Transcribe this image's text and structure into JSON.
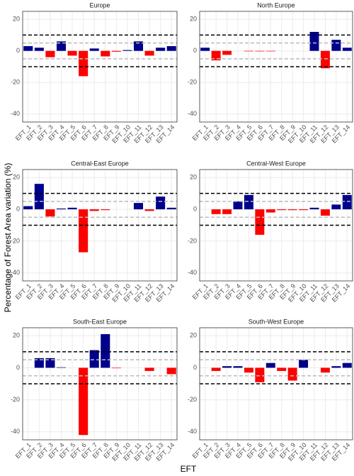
{
  "y_label": "Percentage of Forest Area variation (%)",
  "x_label": "EFT",
  "chart_data": [
    {
      "type": "bar",
      "title": "Europe",
      "categories": [
        "EFT_1",
        "EFT_2",
        "EFT_3",
        "EFT_4",
        "EFT_5",
        "EFT_6",
        "EFT_7",
        "EFT_8",
        "EFT_9",
        "EFT_10",
        "EFT_11",
        "EFT_12",
        "EFT_13",
        "EFT_14"
      ],
      "values": [
        3,
        2,
        -4,
        6,
        -3,
        -16,
        1.5,
        -3.5,
        -0.5,
        0.5,
        6,
        -3,
        2,
        3
      ],
      "pos_color": "#00008b",
      "neg_color": "#ff0000",
      "ylim": [
        -45,
        25
      ],
      "yticks": [
        -40,
        -20,
        0,
        20
      ],
      "grid": true,
      "hlines": [
        {
          "value": 10,
          "color": "#000000"
        },
        {
          "value": -10,
          "color": "#000000"
        },
        {
          "value": 5,
          "color": "#bbbbbb"
        },
        {
          "value": -5,
          "color": "#bbbbbb"
        }
      ]
    },
    {
      "type": "bar",
      "title": "North Europe",
      "categories": [
        "EFT_1",
        "EFT_2",
        "EFT_3",
        "EFT_4",
        "EFT_5",
        "EFT_6",
        "EFT_7",
        "EFT_8",
        "EFT_9",
        "EFT_10",
        "EFT_11",
        "EFT_12",
        "EFT_13",
        "EFT_14"
      ],
      "values": [
        2,
        -6,
        -2.5,
        0,
        -0.3,
        -0.3,
        -0.3,
        0,
        0,
        0,
        12,
        -11,
        7,
        2
      ],
      "pos_color": "#00008b",
      "neg_color": "#ff0000",
      "ylim": [
        -45,
        25
      ],
      "yticks": [
        -40,
        -20,
        0,
        20
      ],
      "grid": true,
      "hlines": [
        {
          "value": 10,
          "color": "#000000"
        },
        {
          "value": -10,
          "color": "#000000"
        },
        {
          "value": 5,
          "color": "#bbbbbb"
        },
        {
          "value": -5,
          "color": "#bbbbbb"
        }
      ]
    },
    {
      "type": "bar",
      "title": "Central-East Europe",
      "categories": [
        "EFT_1",
        "EFT_2",
        "EFT_3",
        "EFT_4",
        "EFT_5",
        "EFT_6",
        "EFT_7",
        "EFT_8",
        "EFT_9",
        "EFT_10",
        "EFT_11",
        "EFT_12",
        "EFT_13",
        "EFT_14"
      ],
      "values": [
        2,
        16,
        -4.5,
        0.5,
        1,
        -27,
        -1,
        -0.5,
        0,
        0,
        4,
        -1,
        8,
        1
      ],
      "pos_color": "#00008b",
      "neg_color": "#ff0000",
      "ylim": [
        -45,
        25
      ],
      "yticks": [
        -40,
        -20,
        0,
        20
      ],
      "grid": true,
      "hlines": [
        {
          "value": 10,
          "color": "#000000"
        },
        {
          "value": -10,
          "color": "#000000"
        },
        {
          "value": 5,
          "color": "#bbbbbb"
        },
        {
          "value": -5,
          "color": "#bbbbbb"
        }
      ]
    },
    {
      "type": "bar",
      "title": "Central-West Europe",
      "categories": [
        "EFT_1",
        "EFT_2",
        "EFT_3",
        "EFT_4",
        "EFT_5",
        "EFT_6",
        "EFT_7",
        "EFT_8",
        "EFT_9",
        "EFT_10",
        "EFT_11",
        "EFT_12",
        "EFT_13",
        "EFT_14"
      ],
      "values": [
        0,
        -3,
        -3,
        5,
        9,
        -16,
        -2,
        -0.5,
        -0.5,
        -0.5,
        1,
        -4,
        3,
        9
      ],
      "pos_color": "#00008b",
      "neg_color": "#ff0000",
      "ylim": [
        -45,
        25
      ],
      "yticks": [
        -40,
        -20,
        0,
        20
      ],
      "grid": true,
      "hlines": [
        {
          "value": 10,
          "color": "#000000"
        },
        {
          "value": -10,
          "color": "#000000"
        },
        {
          "value": 5,
          "color": "#bbbbbb"
        },
        {
          "value": -5,
          "color": "#bbbbbb"
        }
      ]
    },
    {
      "type": "bar",
      "title": "South-East Europe",
      "categories": [
        "EFT_1",
        "EFT_2",
        "EFT_3",
        "EFT_4",
        "EFT_5",
        "EFT_6",
        "EFT_7",
        "EFT_8",
        "EFT_9",
        "EFT_10",
        "EFT_11",
        "EFT_12",
        "EFT_13",
        "EFT_14"
      ],
      "values": [
        0,
        6,
        6,
        0.3,
        0,
        -42,
        11,
        21,
        -0.3,
        0,
        0,
        -2,
        0,
        -4
      ],
      "pos_color": "#00008b",
      "neg_color": "#ff0000",
      "ylim": [
        -45,
        25
      ],
      "yticks": [
        -40,
        -20,
        0,
        20
      ],
      "grid": true,
      "hlines": [
        {
          "value": 10,
          "color": "#000000"
        },
        {
          "value": -10,
          "color": "#000000"
        },
        {
          "value": 5,
          "color": "#bbbbbb"
        },
        {
          "value": -5,
          "color": "#bbbbbb"
        }
      ]
    },
    {
      "type": "bar",
      "title": "South-West Europe",
      "categories": [
        "EFT_1",
        "EFT_2",
        "EFT_3",
        "EFT_4",
        "EFT_5",
        "EFT_6",
        "EFT_7",
        "EFT_8",
        "EFT_9",
        "EFT_10",
        "EFT_11",
        "EFT_12",
        "EFT_13",
        "EFT_14"
      ],
      "values": [
        0,
        -2,
        1,
        1,
        -3,
        -9,
        3,
        -2,
        -8,
        5,
        0,
        -3,
        1,
        3
      ],
      "pos_color": "#00008b",
      "neg_color": "#ff0000",
      "ylim": [
        -45,
        25
      ],
      "yticks": [
        -40,
        -20,
        0,
        20
      ],
      "grid": true,
      "hlines": [
        {
          "value": 10,
          "color": "#000000"
        },
        {
          "value": -10,
          "color": "#000000"
        },
        {
          "value": 5,
          "color": "#bbbbbb"
        },
        {
          "value": -5,
          "color": "#bbbbbb"
        }
      ]
    }
  ]
}
